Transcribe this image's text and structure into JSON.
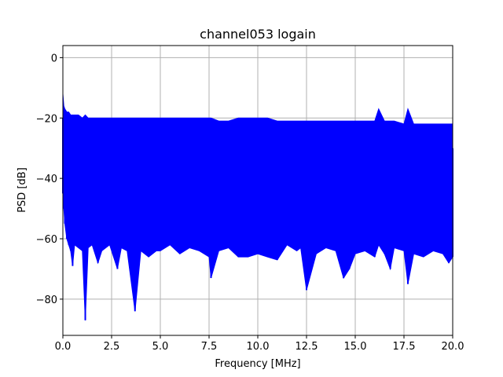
{
  "chart_data": {
    "type": "line",
    "title": "channel053 logain",
    "xlabel": "Frequency [MHz]",
    "ylabel": "PSD [dB]",
    "xlim": [
      0,
      20
    ],
    "ylim": [
      -92,
      4
    ],
    "xticks": [
      0,
      2.5,
      5,
      7.5,
      10,
      12.5,
      15,
      17.5,
      20
    ],
    "xtick_labels": [
      "0.0",
      "2.5",
      "5.0",
      "7.5",
      "10.0",
      "12.5",
      "15.0",
      "17.5",
      "20.0"
    ],
    "yticks": [
      0,
      -20,
      -40,
      -60,
      -80
    ],
    "ytick_labels": [
      "0",
      "−20",
      "−40",
      "−60",
      "−80"
    ],
    "grid": true,
    "series": [
      {
        "color": "#0000ff",
        "x": [
          0.0,
          0.05,
          0.1,
          0.2,
          0.3,
          0.4,
          0.5,
          0.6,
          0.8,
          1.0,
          1.15,
          1.3,
          1.5,
          1.8,
          2.0,
          2.4,
          2.8,
          3.0,
          3.3,
          3.7,
          4.0,
          4.4,
          4.8,
          5.0,
          5.5,
          6.0,
          6.5,
          7.0,
          7.5,
          7.6,
          8.0,
          8.5,
          9.0,
          9.5,
          10.0,
          10.5,
          11.0,
          11.5,
          12.0,
          12.2,
          12.5,
          13.0,
          13.5,
          14.0,
          14.4,
          14.7,
          15.0,
          15.5,
          16.0,
          16.2,
          16.5,
          16.8,
          17.0,
          17.5,
          17.7,
          18.0,
          18.5,
          19.0,
          19.5,
          19.8,
          20.0
        ],
        "upper": [
          -12,
          -16,
          -17,
          -18,
          -18,
          -19,
          -19,
          -19,
          -19,
          -20,
          -19,
          -20,
          -20,
          -20,
          -20,
          -20,
          -20,
          -20,
          -20,
          -20,
          -20,
          -20,
          -20,
          -20,
          -20,
          -20,
          -20,
          -20,
          -20,
          -20,
          -21,
          -21,
          -20,
          -20,
          -20,
          -20,
          -21,
          -21,
          -21,
          -21,
          -21,
          -21,
          -21,
          -21,
          -21,
          -21,
          -21,
          -21,
          -21,
          -17,
          -21,
          -21,
          -21,
          -22,
          -17,
          -22,
          -22,
          -22,
          -22,
          -22,
          -22
        ],
        "lower": [
          -45,
          -50,
          -55,
          -60,
          -62,
          -64,
          -69,
          -62,
          -63,
          -64,
          -87,
          -63,
          -62,
          -68,
          -64,
          -62,
          -70,
          -63,
          -64,
          -84,
          -64,
          -66,
          -64,
          -64,
          -62,
          -65,
          -63,
          -64,
          -66,
          -73,
          -64,
          -63,
          -66,
          -66,
          -65,
          -66,
          -67,
          -62,
          -64,
          -63,
          -77,
          -65,
          -63,
          -64,
          -73,
          -70,
          -65,
          -64,
          -66,
          -62,
          -65,
          -70,
          -63,
          -64,
          -75,
          -65,
          -66,
          -64,
          -65,
          -68,
          -66
        ]
      }
    ]
  }
}
